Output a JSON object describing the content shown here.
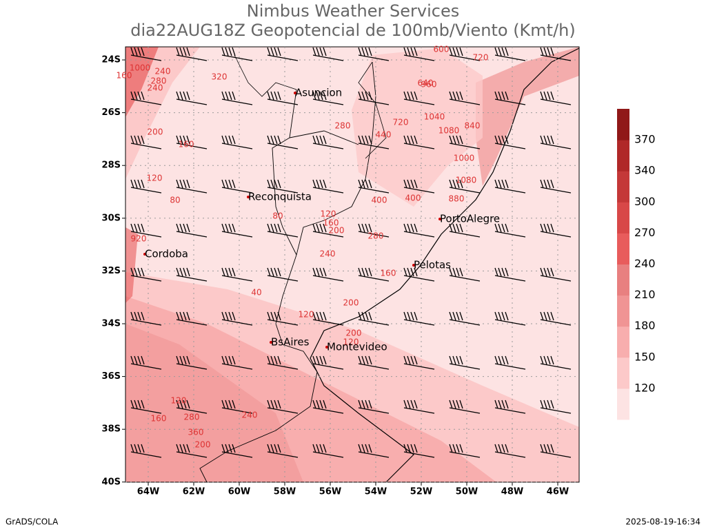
{
  "header": {
    "title": "Nimbus Weather Services",
    "subtitle": "dia22AUG18Z Geopotencial de 100mb/Viento (Kmt/h)"
  },
  "map": {
    "lat_labels": [
      "24S",
      "26S",
      "28S",
      "30S",
      "32S",
      "34S",
      "36S",
      "38S",
      "40S"
    ],
    "lon_labels": [
      "64W",
      "62W",
      "60W",
      "58W",
      "56W",
      "54W",
      "52W",
      "50W",
      "48W",
      "46W"
    ],
    "cities": [
      "Asuncion",
      "Reconquista",
      "Cordoba",
      "PortoAlegre",
      "Pelotas",
      "BsAires",
      "Montevideo"
    ],
    "contour_labels": [
      "1000",
      "240",
      "280",
      "200",
      "160",
      "120",
      "80",
      "920",
      "80",
      "40",
      "160",
      "280",
      "720",
      "440",
      "400",
      "120",
      "160",
      "200",
      "280",
      "240",
      "160",
      "200",
      "120",
      "200",
      "120",
      "160",
      "120",
      "280",
      "360",
      "200",
      "240",
      "640",
      "960",
      "1040",
      "1080",
      "880",
      "720",
      "600",
      "840",
      "400",
      "320",
      "240",
      "1080",
      "1000"
    ]
  },
  "colorbar": {
    "labels": [
      "120",
      "150",
      "180",
      "210",
      "240",
      "270",
      "300",
      "340",
      "370"
    ],
    "colors": [
      "#fde3e3",
      "#fcc9c9",
      "#f8aeae",
      "#f09494",
      "#e88080",
      "#e85c5c",
      "#d84848",
      "#c43838",
      "#b02828",
      "#901818"
    ]
  },
  "footer": {
    "left": "GrADS/COLA",
    "right": "2025-08-19-16:34"
  }
}
